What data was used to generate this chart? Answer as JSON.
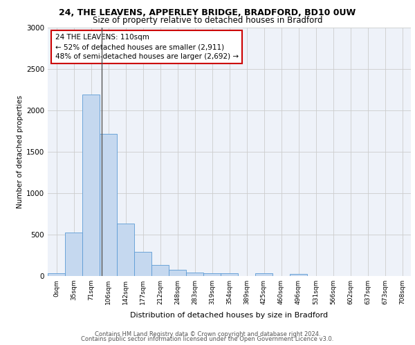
{
  "title1": "24, THE LEAVENS, APPERLEY BRIDGE, BRADFORD, BD10 0UW",
  "title2": "Size of property relative to detached houses in Bradford",
  "xlabel": "Distribution of detached houses by size in Bradford",
  "ylabel": "Number of detached properties",
  "categories": [
    "0sqm",
    "35sqm",
    "71sqm",
    "106sqm",
    "142sqm",
    "177sqm",
    "212sqm",
    "248sqm",
    "283sqm",
    "319sqm",
    "354sqm",
    "389sqm",
    "425sqm",
    "460sqm",
    "496sqm",
    "531sqm",
    "566sqm",
    "602sqm",
    "637sqm",
    "673sqm",
    "708sqm"
  ],
  "bar_values": [
    30,
    525,
    2195,
    1715,
    635,
    290,
    130,
    75,
    45,
    35,
    35,
    0,
    30,
    0,
    25,
    0,
    0,
    0,
    0,
    0,
    0
  ],
  "bar_color": "#c5d8ef",
  "bar_edge_color": "#5b9bd5",
  "vline_color": "#555555",
  "annotation_text": "24 THE LEAVENS: 110sqm\n← 52% of detached houses are smaller (2,911)\n48% of semi-detached houses are larger (2,692) →",
  "annotation_box_color": "#ffffff",
  "annotation_box_edge": "#cc0000",
  "ylim": [
    0,
    3000
  ],
  "yticks": [
    0,
    500,
    1000,
    1500,
    2000,
    2500,
    3000
  ],
  "grid_color": "#cccccc",
  "background_color": "#eef2f9",
  "footer_line1": "Contains HM Land Registry data © Crown copyright and database right 2024.",
  "footer_line2": "Contains public sector information licensed under the Open Government Licence v3.0."
}
